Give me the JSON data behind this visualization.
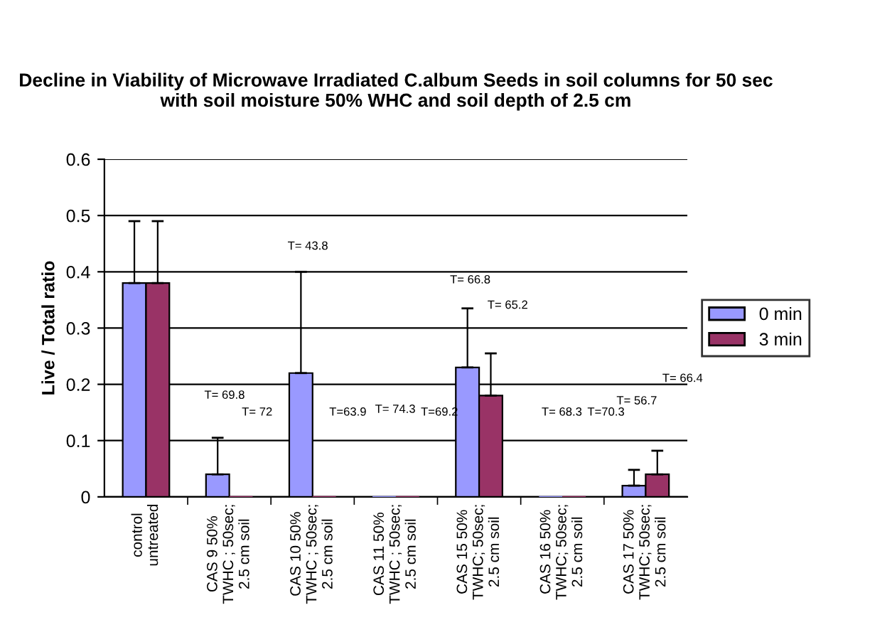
{
  "chart_data": {
    "type": "bar",
    "title": "Decline in Viability of Microwave Irradiated C.album Seeds in soil columns for 50 sec with soil moisture 50% WHC and soil depth of 2.5 cm",
    "ylabel": "Live / Total ratio",
    "categories": [
      "control\nuntreated",
      "CAS 9 50%\nTWHC ; 50sec;\n2.5 cm soil",
      "CAS 10 50%\nTWHC ; 50sec;\n2.5 cm soil",
      "CAS 11 50%\nTWHC ; 50sec;\n2.5 cm soil",
      "CAS 15 50%\nTWHC; 50sec;\n2.5 cm soil",
      "CAS 16 50%\nTWHC; 50sec;\n2.5 cm soil",
      "CAS 17 50%\nTWHC; 50sec;\n2.5 cm soil"
    ],
    "series": [
      {
        "name": "0 min",
        "color": "#9999ff",
        "values": [
          0.38,
          0.04,
          0.22,
          0,
          0.23,
          0,
          0.02
        ],
        "errors": [
          [
            0.38,
            0.49
          ],
          [
            0.04,
            0.105
          ],
          [
            0.22,
            0.4
          ],
          null,
          [
            0.23,
            0.335
          ],
          null,
          [
            0.02,
            0.048
          ]
        ]
      },
      {
        "name": "3 min",
        "color": "#993366",
        "values": [
          0.38,
          0,
          0,
          0,
          0.18,
          0,
          0.04
        ],
        "errors": [
          [
            0.38,
            0.49
          ],
          null,
          null,
          null,
          [
            0.18,
            0.255
          ],
          null,
          [
            0.04,
            0.082
          ]
        ]
      }
    ],
    "annotations": [
      "T= 69.8",
      "T= 72",
      "T= 43.8",
      "T=63.9",
      "T= 74.3",
      "T=69.2",
      "T= 66.8",
      "T= 65.2",
      "T= 68.3",
      "T=70.3",
      "T= 56.7",
      "T= 66.4"
    ],
    "ylim": [
      0,
      0.6
    ],
    "yticks": [
      0,
      0.1,
      0.2,
      0.3,
      0.4,
      0.5,
      0.6
    ],
    "grid": "y",
    "legend": "right"
  }
}
